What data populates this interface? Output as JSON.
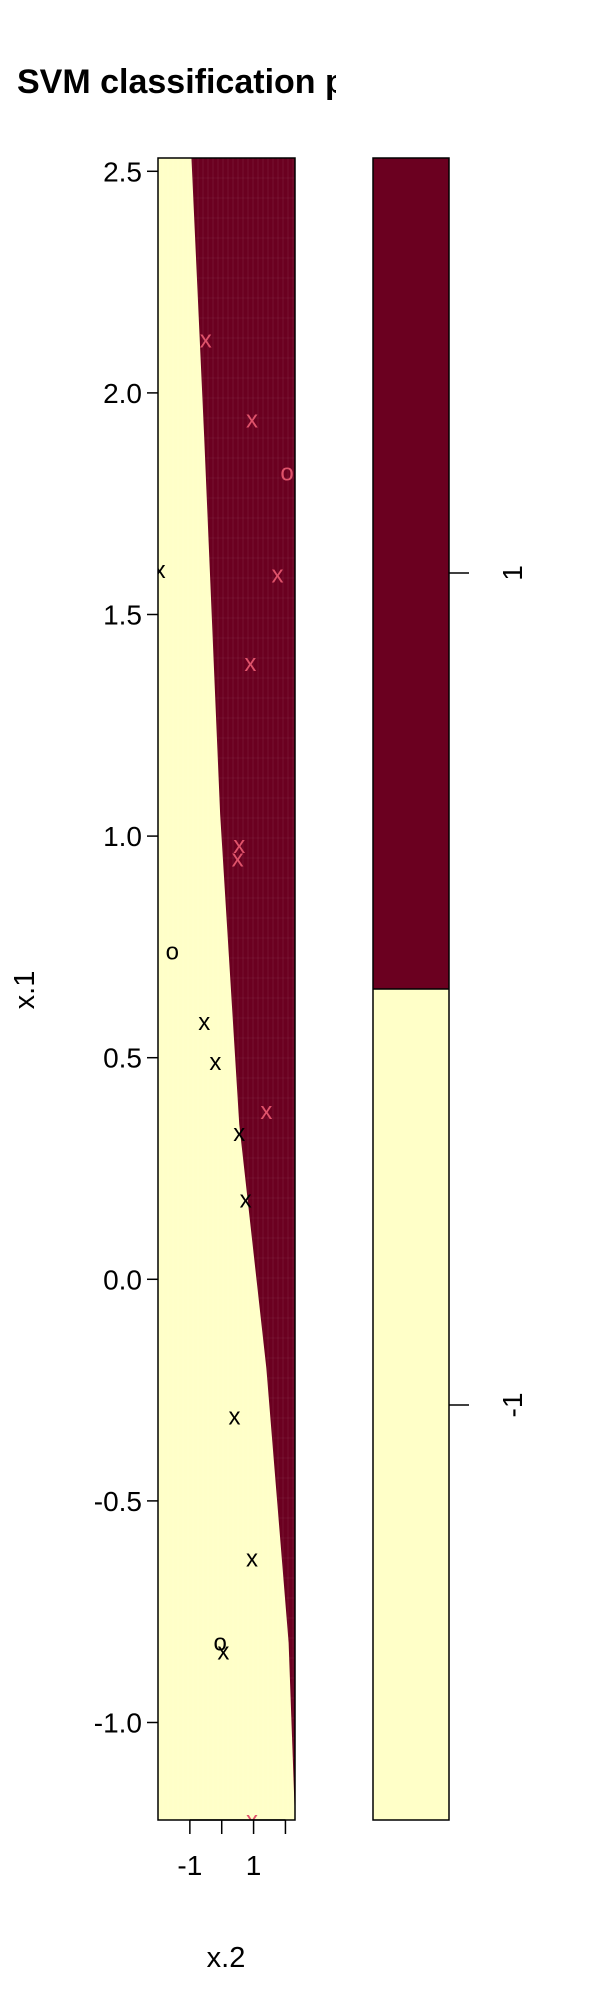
{
  "chart_data": {
    "type": "scatter",
    "title": "SVM classification plot",
    "xlabel": "x.2",
    "ylabel": "x.1",
    "xlim": [
      -2.0,
      2.3
    ],
    "ylim": [
      -1.22,
      2.53
    ],
    "x_ticks": [
      -1,
      0,
      1,
      2
    ],
    "x_tick_labels": [
      "-1",
      "",
      "1",
      ""
    ],
    "y_ticks": [
      -1.0,
      -0.5,
      0.0,
      0.5,
      1.0,
      1.5,
      2.0,
      2.5
    ],
    "y_tick_labels": [
      "-1.0",
      "-0.5",
      "0.0",
      "0.5",
      "1.0",
      "1.5",
      "2.0",
      "2.5"
    ],
    "decision_boundary": [
      [
        -0.95,
        2.53
      ],
      [
        -0.55,
        1.9
      ],
      [
        -0.05,
        1.05
      ],
      [
        0.55,
        0.35
      ],
      [
        1.4,
        -0.2
      ],
      [
        2.1,
        -0.82
      ],
      [
        2.3,
        -1.22
      ]
    ],
    "regions": [
      {
        "class": "-1",
        "color": "#FFFFC8"
      },
      {
        "class": "1",
        "color": "#6B0020"
      }
    ],
    "points": [
      {
        "x": -0.5,
        "y": 2.12,
        "symbol": "x",
        "class": "1",
        "color": "#DF536B"
      },
      {
        "x": 0.95,
        "y": 1.94,
        "symbol": "x",
        "class": "1",
        "color": "#DF536B"
      },
      {
        "x": 2.05,
        "y": 1.82,
        "symbol": "o",
        "class": "1",
        "color": "#DF536B"
      },
      {
        "x": 1.75,
        "y": 1.59,
        "symbol": "x",
        "class": "1",
        "color": "#DF536B"
      },
      {
        "x": 0.9,
        "y": 1.39,
        "symbol": "x",
        "class": "1",
        "color": "#DF536B"
      },
      {
        "x": 0.55,
        "y": 0.98,
        "symbol": "x",
        "class": "1",
        "color": "#DF536B"
      },
      {
        "x": 0.5,
        "y": 0.95,
        "symbol": "x",
        "class": "1",
        "color": "#DF536B"
      },
      {
        "x": 1.4,
        "y": 0.38,
        "symbol": "x",
        "class": "1",
        "color": "#DF536B"
      },
      {
        "x": 0.95,
        "y": -1.22,
        "symbol": "x",
        "class": "1",
        "color": "#DF536B"
      },
      {
        "x": -1.95,
        "y": 1.6,
        "symbol": "x",
        "class": "-1",
        "color": "#000000"
      },
      {
        "x": -1.55,
        "y": 0.74,
        "symbol": "o",
        "class": "-1",
        "color": "#000000"
      },
      {
        "x": -0.55,
        "y": 0.58,
        "symbol": "x",
        "class": "-1",
        "color": "#000000"
      },
      {
        "x": -0.2,
        "y": 0.49,
        "symbol": "x",
        "class": "-1",
        "color": "#000000"
      },
      {
        "x": 0.55,
        "y": 0.33,
        "symbol": "x",
        "class": "-1",
        "color": "#000000"
      },
      {
        "x": 0.75,
        "y": 0.18,
        "symbol": "x",
        "class": "-1",
        "color": "#000000"
      },
      {
        "x": 0.4,
        "y": -0.31,
        "symbol": "x",
        "class": "-1",
        "color": "#000000"
      },
      {
        "x": 0.95,
        "y": -0.63,
        "symbol": "x",
        "class": "-1",
        "color": "#000000"
      },
      {
        "x": -0.05,
        "y": -0.82,
        "symbol": "o",
        "class": "-1",
        "color": "#000000"
      },
      {
        "x": 0.05,
        "y": -0.84,
        "symbol": "x",
        "class": "-1",
        "color": "#000000"
      }
    ],
    "legend": {
      "type": "color-key",
      "placement": "right",
      "labels": [
        "1",
        "-1"
      ],
      "colors": [
        "#6B0020",
        "#FFFFC8"
      ]
    }
  }
}
